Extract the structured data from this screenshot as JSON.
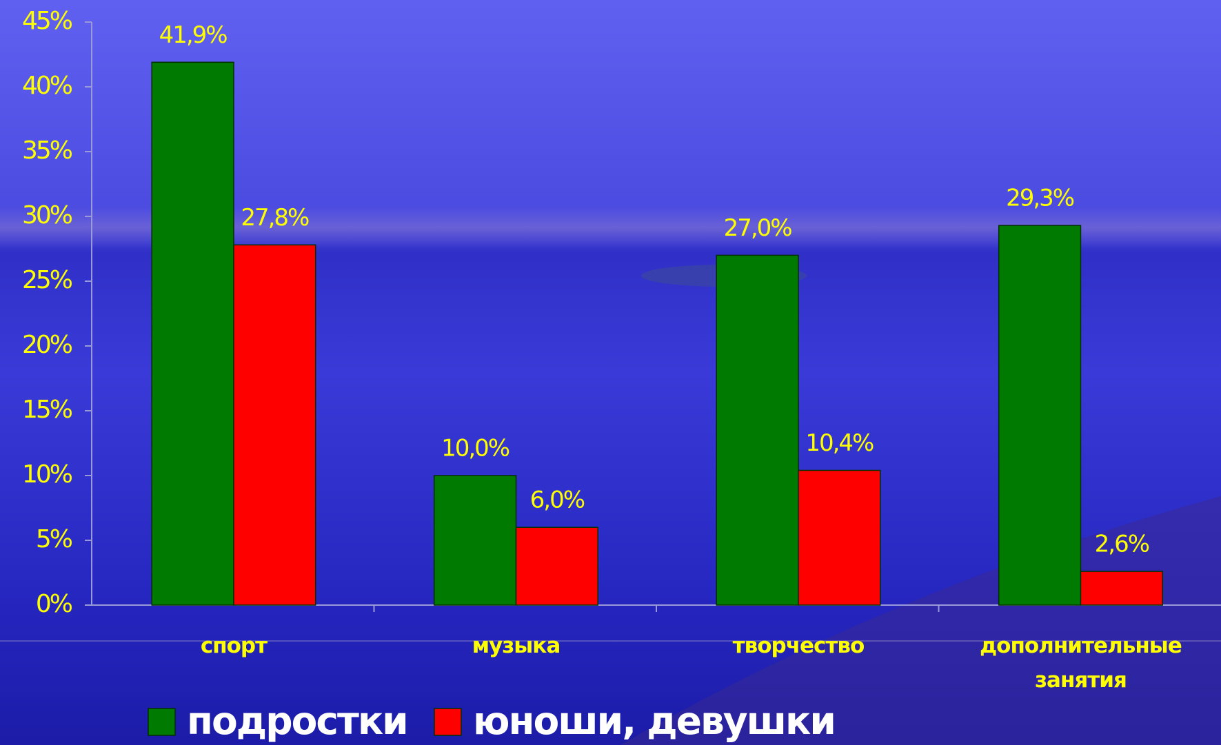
{
  "chart_data": {
    "type": "bar",
    "categories": [
      "спорт",
      "музыка",
      "творчество",
      "дополнительные занятия"
    ],
    "series": [
      {
        "name": "подростки",
        "color": "#007a00",
        "values": [
          41.9,
          10.0,
          27.0,
          29.3
        ],
        "value_labels": [
          "41,9%",
          "10,0%",
          "27,0%",
          "29,3%"
        ]
      },
      {
        "name": "юноши, девушки",
        "color": "#ff0000",
        "values": [
          27.8,
          6.0,
          10.4,
          2.6
        ],
        "value_labels": [
          "27,8%",
          "6,0%",
          "10,4%",
          "2,6%"
        ]
      }
    ],
    "ylim": [
      0,
      45
    ],
    "yticks": [
      {
        "value": 0,
        "label": "0%"
      },
      {
        "value": 5,
        "label": "5%"
      },
      {
        "value": 10,
        "label": "10%"
      },
      {
        "value": 15,
        "label": "15%"
      },
      {
        "value": 20,
        "label": "20%"
      },
      {
        "value": 25,
        "label": "25%"
      },
      {
        "value": 30,
        "label": "30%"
      },
      {
        "value": 35,
        "label": "35%"
      },
      {
        "value": 40,
        "label": "40%"
      },
      {
        "value": 45,
        "label": "45%"
      }
    ],
    "grid": false,
    "legend": "bottom"
  }
}
